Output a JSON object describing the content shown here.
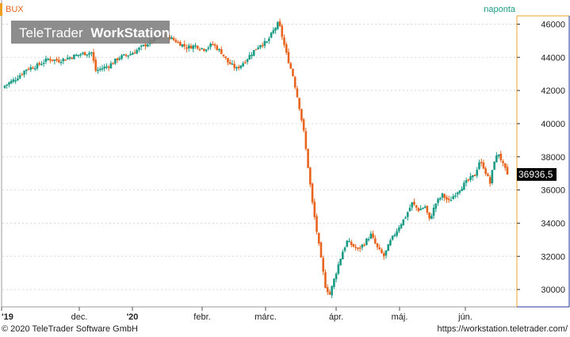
{
  "header": {
    "symbol": "BUX",
    "period": "naponta",
    "watermark_bold": "TeleTrader",
    "watermark_light": "WorkStation"
  },
  "footer": {
    "copyright": "© 2020 TeleTrader Software GmbH",
    "url": "https://workstation.teletrader.com/"
  },
  "colors": {
    "up": "#1a9b86",
    "down": "#e8641e",
    "axis_accent": "#f0a020",
    "axis_blue": "#1f3a9a",
    "grid": "#d8d8d8"
  },
  "chart_data": {
    "type": "candlestick",
    "ylim": [
      29000,
      46500
    ],
    "y_ticks": [
      "30000",
      "32000",
      "34000",
      "36000",
      "38000",
      "40000",
      "42000",
      "44000",
      "46000"
    ],
    "x_labels": [
      "'19",
      "dec.",
      "'20",
      "febr.",
      "márc.",
      "ápr.",
      "máj.",
      "jún."
    ],
    "last_value_label": "36936,5",
    "last_value": 36936.5,
    "grid": true,
    "close_path": [
      [
        0,
        42300
      ],
      [
        5,
        42700
      ],
      [
        10,
        43300
      ],
      [
        15,
        43500
      ],
      [
        20,
        43900
      ],
      [
        25,
        43800
      ],
      [
        30,
        44000
      ],
      [
        35,
        44200
      ],
      [
        40,
        44300
      ],
      [
        42,
        43200
      ],
      [
        48,
        43500
      ],
      [
        53,
        44000
      ],
      [
        58,
        44200
      ],
      [
        63,
        44600
      ],
      [
        68,
        45000
      ],
      [
        73,
        45300
      ],
      [
        76,
        45200
      ],
      [
        80,
        44900
      ],
      [
        84,
        44600
      ],
      [
        88,
        44700
      ],
      [
        92,
        44500
      ],
      [
        96,
        44800
      ],
      [
        100,
        44300
      ],
      [
        103,
        43700
      ],
      [
        107,
        43300
      ],
      [
        111,
        43800
      ],
      [
        115,
        44400
      ],
      [
        118,
        44800
      ],
      [
        121,
        44900
      ],
      [
        124,
        45600
      ],
      [
        126,
        46000
      ],
      [
        127,
        45800
      ],
      [
        130,
        44200
      ],
      [
        133,
        42900
      ],
      [
        136,
        41000
      ],
      [
        138,
        39500
      ],
      [
        140,
        37400
      ],
      [
        142,
        35200
      ],
      [
        144,
        33500
      ],
      [
        146,
        31800
      ],
      [
        148,
        30200
      ],
      [
        150,
        29700
      ],
      [
        152,
        30600
      ],
      [
        154,
        31500
      ],
      [
        156,
        32300
      ],
      [
        158,
        32900
      ],
      [
        160,
        32700
      ],
      [
        163,
        32400
      ],
      [
        166,
        32800
      ],
      [
        169,
        33300
      ],
      [
        172,
        32500
      ],
      [
        175,
        32000
      ],
      [
        178,
        32900
      ],
      [
        182,
        33800
      ],
      [
        185,
        34400
      ],
      [
        188,
        35200
      ],
      [
        191,
        34800
      ],
      [
        194,
        35000
      ],
      [
        196,
        34200
      ],
      [
        199,
        35200
      ],
      [
        202,
        35700
      ],
      [
        205,
        35300
      ],
      [
        208,
        35800
      ],
      [
        211,
        36200
      ],
      [
        214,
        36600
      ],
      [
        217,
        36900
      ],
      [
        219,
        37700
      ],
      [
        221,
        37400
      ],
      [
        224,
        36400
      ],
      [
        226,
        37800
      ],
      [
        228,
        38200
      ],
      [
        230,
        37500
      ],
      [
        232,
        36936.5
      ]
    ]
  }
}
